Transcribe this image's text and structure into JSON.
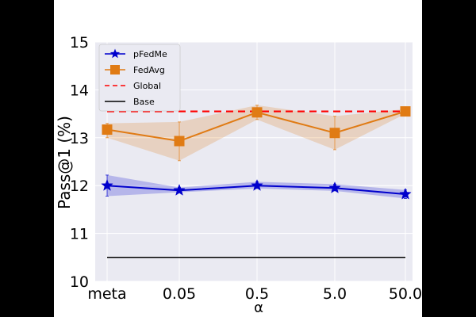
{
  "chart_data": {
    "type": "line",
    "title": "",
    "xlabel": "α",
    "ylabel": "Pass@1 (%)",
    "categories": [
      "meta",
      "0.05",
      "0.5",
      "5.0",
      "50.0"
    ],
    "ylim": [
      10,
      15
    ],
    "yticks": [
      "10",
      "11",
      "12",
      "13",
      "14",
      "15"
    ],
    "grid": true,
    "legend_position": "top-left",
    "series": [
      {
        "name": "pFedMe",
        "color": "#0000cc",
        "marker": "star",
        "values": [
          12.0,
          11.9,
          12.0,
          11.95,
          11.82
        ],
        "lower": [
          11.78,
          11.86,
          11.94,
          11.89,
          11.73
        ],
        "upper": [
          12.22,
          11.96,
          12.08,
          12.03,
          11.91
        ]
      },
      {
        "name": "FedAvg",
        "color": "#e07b14",
        "marker": "square",
        "values": [
          13.17,
          12.93,
          13.53,
          13.1,
          13.55
        ],
        "lower": [
          13.0,
          12.52,
          13.38,
          12.75,
          13.5
        ],
        "upper": [
          13.3,
          13.33,
          13.68,
          13.45,
          13.6
        ]
      },
      {
        "name": "Global",
        "color": "#ff0000",
        "style": "dashed",
        "constant": 13.55
      },
      {
        "name": "Base",
        "color": "#000000",
        "style": "solid",
        "constant": 10.5
      }
    ]
  }
}
